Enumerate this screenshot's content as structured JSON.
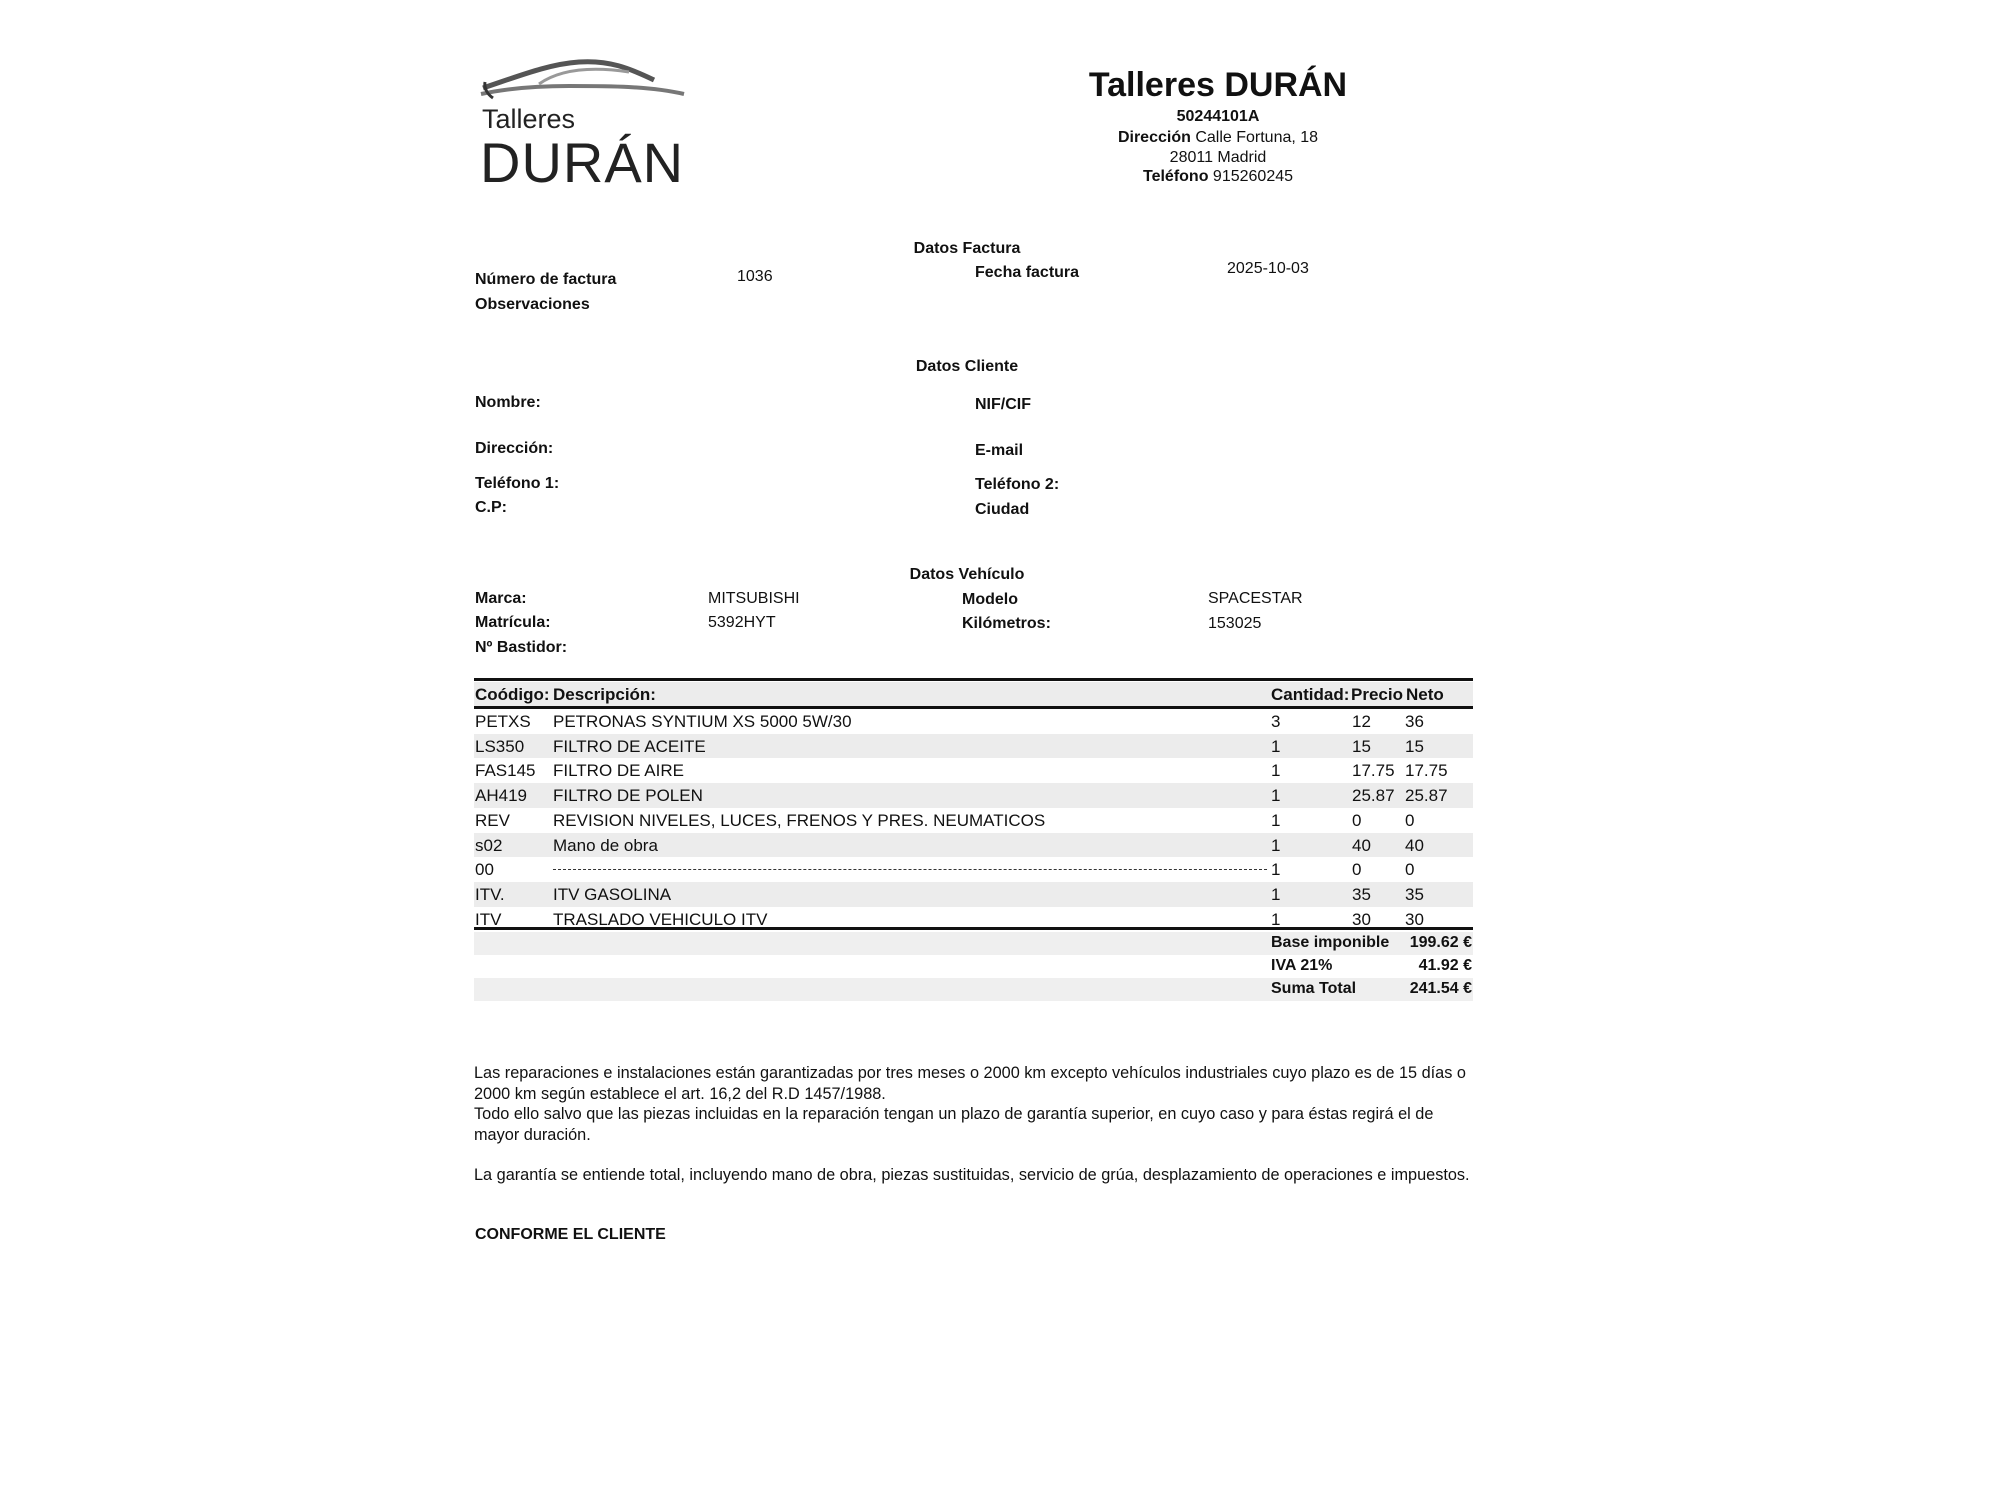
{
  "logo": {
    "line1": "Talleres",
    "line2": "DURÁN"
  },
  "company": {
    "name": "Talleres DURÁN",
    "tax_id": "50244101A",
    "address_label": "Dirección",
    "address": "Calle Fortuna, 18",
    "city": "28011 Madrid",
    "phone_label": "Teléfono",
    "phone": "915260245"
  },
  "invoice": {
    "section_title": "Datos Factura",
    "number_label": "Número de factura",
    "number": "1036",
    "date_label": "Fecha factura",
    "date": "2025-10-03",
    "notes_label": "Observaciones"
  },
  "client": {
    "section_title": "Datos Cliente",
    "name_label": "Nombre:",
    "nif_label": "NIF/CIF",
    "address_label": "Dirección:",
    "email_label": "E-mail",
    "phone1_label": "Teléfono 1:",
    "phone2_label": "Teléfono 2:",
    "cp_label": "C.P:",
    "city_label": "Ciudad"
  },
  "vehicle": {
    "section_title": "Datos Vehículo",
    "brand_label": "Marca:",
    "brand": "MITSUBISHI",
    "model_label": "Modelo",
    "model": "SPACESTAR",
    "plate_label": "Matrícula:",
    "plate": "5392HYT",
    "km_label": "Kilómetros:",
    "km": "153025",
    "chassis_label": "Nº Bastidor:"
  },
  "table": {
    "headers": {
      "code": "Coódigo:",
      "desc": "Descripción:",
      "qty": "Cantidad:",
      "price": "Precio",
      "net": "Neto"
    },
    "rows": [
      {
        "code": "PETXS",
        "desc": "PETRONAS SYNTIUM XS 5000 5W/30",
        "qty": "3",
        "price": "12",
        "net": "36"
      },
      {
        "code": "LS350",
        "desc": "FILTRO DE ACEITE",
        "qty": "1",
        "price": "15",
        "net": "15"
      },
      {
        "code": "FAS145",
        "desc": "FILTRO DE AIRE",
        "qty": "1",
        "price": "17.75",
        "net": "17.75"
      },
      {
        "code": "AH419",
        "desc": "FILTRO DE POLEN",
        "qty": "1",
        "price": "25.87",
        "net": "25.87"
      },
      {
        "code": "REV",
        "desc": "REVISION NIVELES, LUCES, FRENOS Y PRES. NEUMATICOS",
        "qty": "1",
        "price": "0",
        "net": "0"
      },
      {
        "code": "s02",
        "desc": "Mano de obra",
        "qty": "1",
        "price": "40",
        "net": "40"
      },
      {
        "code": "00",
        "desc": "",
        "qty": "1",
        "price": "0",
        "net": "0"
      },
      {
        "code": "ITV.",
        "desc": "ITV GASOLINA",
        "qty": "1",
        "price": "35",
        "net": "35"
      },
      {
        "code": "ITV",
        "desc": "TRASLADO VEHICULO ITV",
        "qty": "1",
        "price": "30",
        "net": "30"
      }
    ]
  },
  "totals": {
    "base_label": "Base imponible",
    "base": "199.62 €",
    "iva_label": "IVA 21%",
    "iva": "41.92 €",
    "total_label": "Suma Total",
    "total": "241.54 €"
  },
  "footer": {
    "p1": "Las reparaciones e instalaciones están garantizadas por tres meses o 2000 km excepto vehículos industriales cuyo plazo es de 15 días o 2000 km según establece el art. 16,2 del R.D 1457/1988.",
    "p2": "Todo ello salvo que las piezas incluidas en la reparación tengan un plazo de garantía superior, en cuyo caso y para éstas regirá el de mayor duración.",
    "p3": "La garantía se entiende total, incluyendo mano de obra, piezas sustituidas, servicio de grúa, desplazamiento de operaciones e impuestos.",
    "signature": "CONFORME EL CLIENTE"
  }
}
